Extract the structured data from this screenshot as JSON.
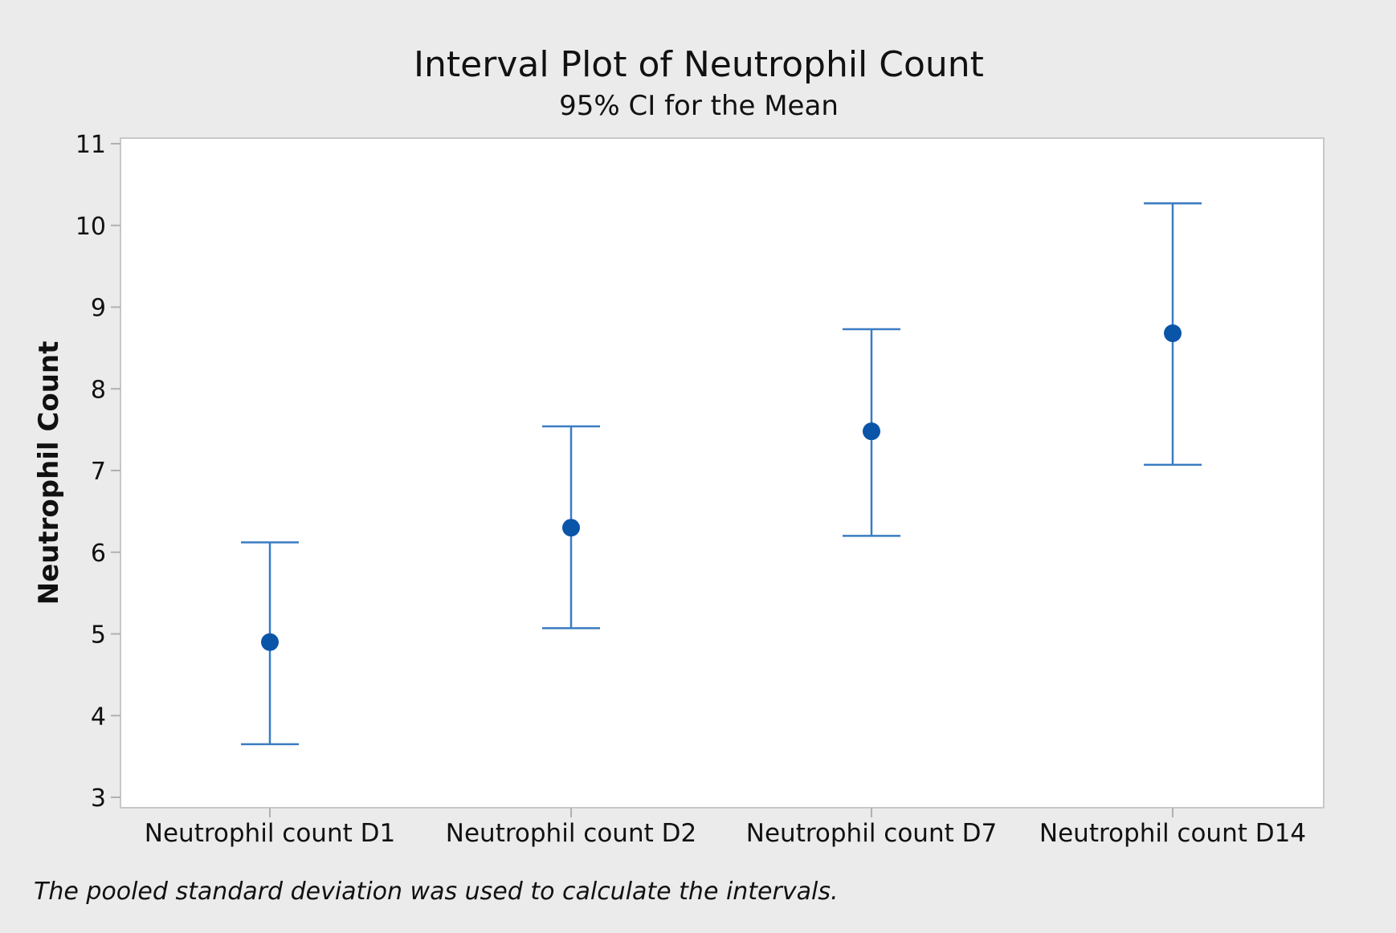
{
  "chart_data": {
    "type": "interval",
    "title": "Interval Plot of Neutrophil Count",
    "subtitle": "95% CI for the Mean",
    "ylabel": "Neutrophil Count",
    "xlabel": "",
    "ylim": [
      3,
      11
    ],
    "yticks": [
      3,
      4,
      5,
      6,
      7,
      8,
      9,
      10,
      11
    ],
    "grid": false,
    "categories": [
      "Neutrophil count D1",
      "Neutrophil count D2",
      "Neutrophil count D7",
      "Neutrophil count D14"
    ],
    "series": [
      {
        "mean": [
          4.9,
          6.3,
          7.48,
          8.68
        ],
        "ci_lower": [
          3.65,
          5.07,
          6.2,
          7.07
        ],
        "ci_upper": [
          6.12,
          7.54,
          8.73,
          10.27
        ]
      }
    ],
    "footnote": "The pooled standard deviation was used to calculate the intervals.",
    "colors": {
      "frame_bg": "#ebebeb",
      "plot_bg": "#ffffff",
      "interval_line": "#3a7cc2",
      "mean_point": "#0b55a8",
      "axis": "#b0b0b0"
    }
  }
}
